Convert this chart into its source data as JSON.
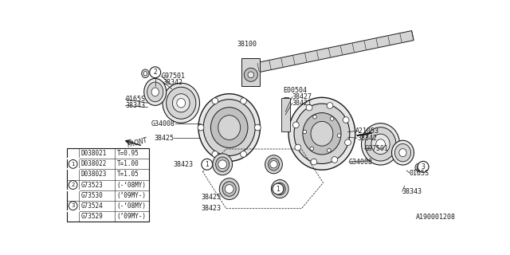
{
  "bg_color": "#ffffff",
  "part_number_label": "A190001208",
  "dark": "#1a1a1a",
  "gray1": "#e8e8e8",
  "gray2": "#d4d4d4",
  "gray3": "#c0c0c0",
  "table_data": [
    [
      "",
      "D038021",
      "T=0.95"
    ],
    [
      "1",
      "D038022",
      "T=1.00"
    ],
    [
      "",
      "D038023",
      "T=1.05"
    ],
    [
      "2",
      "G73523",
      "(-‘08MY)"
    ],
    [
      "",
      "G73530",
      "(’09MY-)"
    ],
    [
      "3",
      "G73524",
      "(-‘08MY)"
    ],
    [
      "",
      "G73529",
      "(’09MY-)"
    ]
  ]
}
